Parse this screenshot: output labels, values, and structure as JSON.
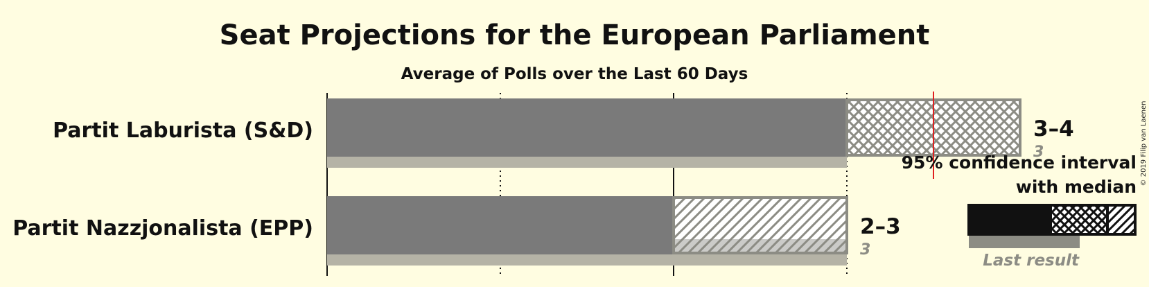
{
  "title": "Seat Projections for the European Parliament",
  "subtitle": "Average of Polls over the Last 60 Days",
  "copyright": "© 2019 Filip van Laenen",
  "colors": {
    "background": "#FFFDE1",
    "median_bar": "#7A7A7A",
    "last_result_bar": "#B5B3A6",
    "ci_hatch_stroke": "#8C8C84",
    "majority_line": "#E02020",
    "legend_bar": "#111111",
    "legend_last": "#8C8C84"
  },
  "chart_data": {
    "type": "bar",
    "orientation": "horizontal",
    "x_scale": [
      0,
      4
    ],
    "gridlines": [
      0,
      1,
      2,
      3
    ],
    "majority_marker": 3.5,
    "parties": [
      {
        "name": "Partit Laburista (S&D)",
        "ci_low": 3,
        "median": 3,
        "ci_high": 4,
        "last_result": 3,
        "range_label": "3–4",
        "last_label": "3",
        "ci_pattern": "crosshatch"
      },
      {
        "name": "Partit Nazzjonalista (EPP)",
        "ci_low": 2,
        "median": 2,
        "ci_high": 3,
        "last_result": 3,
        "range_label": "2–3",
        "last_label": "3",
        "ci_pattern": "diagonal"
      }
    ]
  },
  "legend": {
    "line1": "95% confidence interval",
    "line2": "with median",
    "last_result": "Last result"
  }
}
